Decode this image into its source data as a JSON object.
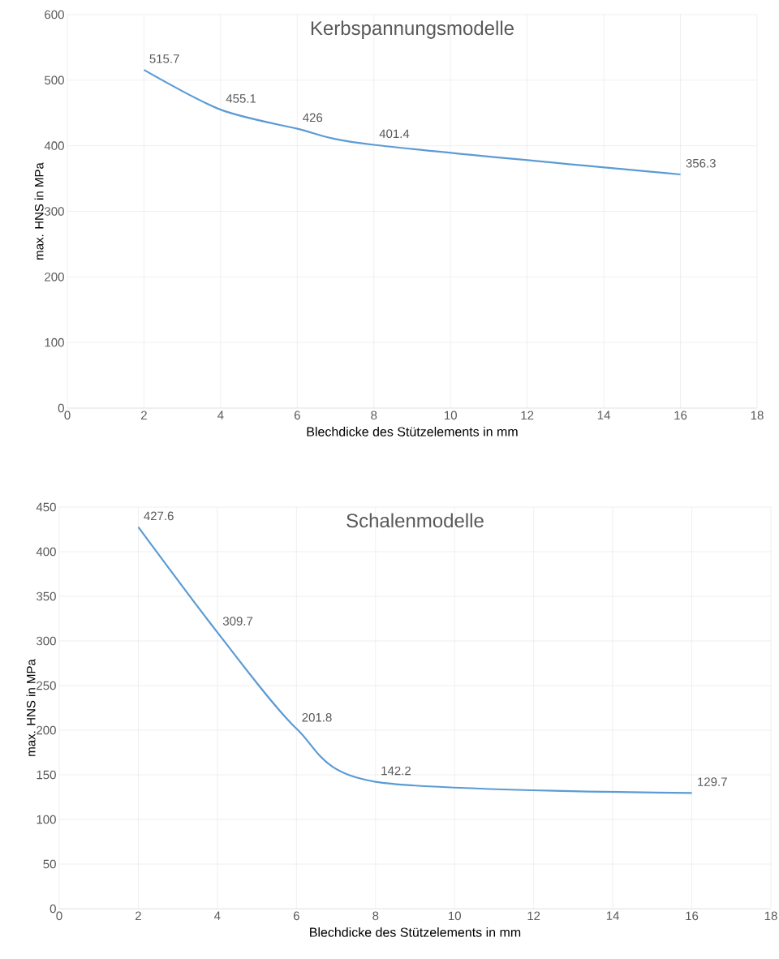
{
  "chart_data": [
    {
      "type": "line",
      "title": "Kerbspannungsmodelle",
      "xlabel": "Blechdicke des Stützelements in mm",
      "ylabel": "max. HNS  in MPa",
      "x": [
        2,
        4,
        6,
        8,
        16
      ],
      "values": [
        515.7,
        455.1,
        426,
        401.4,
        356.3
      ],
      "color": "#5b9bd5",
      "xlim": [
        0,
        18
      ],
      "xticks": [
        0,
        2,
        4,
        6,
        8,
        10,
        12,
        14,
        16,
        18
      ],
      "ylim": [
        0,
        600
      ],
      "yticks": [
        0,
        100,
        200,
        300,
        400,
        500,
        600
      ],
      "grid": true,
      "data_labels": true,
      "marker": "none",
      "line_style": "solid"
    },
    {
      "type": "line",
      "title": "Schalenmodelle",
      "xlabel": "Blechdicke des Stützelements in mm",
      "ylabel": "max. HNS in MPa",
      "x": [
        2,
        4,
        6,
        8,
        16
      ],
      "values": [
        427.6,
        309.7,
        201.8,
        142.2,
        129.7
      ],
      "color": "#5b9bd5",
      "xlim": [
        0,
        18
      ],
      "xticks": [
        0,
        2,
        4,
        6,
        8,
        10,
        12,
        14,
        16,
        18
      ],
      "ylim": [
        0,
        450
      ],
      "yticks": [
        0,
        50,
        100,
        150,
        200,
        250,
        300,
        350,
        400,
        450
      ],
      "grid": true,
      "data_labels": true,
      "marker": "none",
      "line_style": "solid"
    }
  ]
}
